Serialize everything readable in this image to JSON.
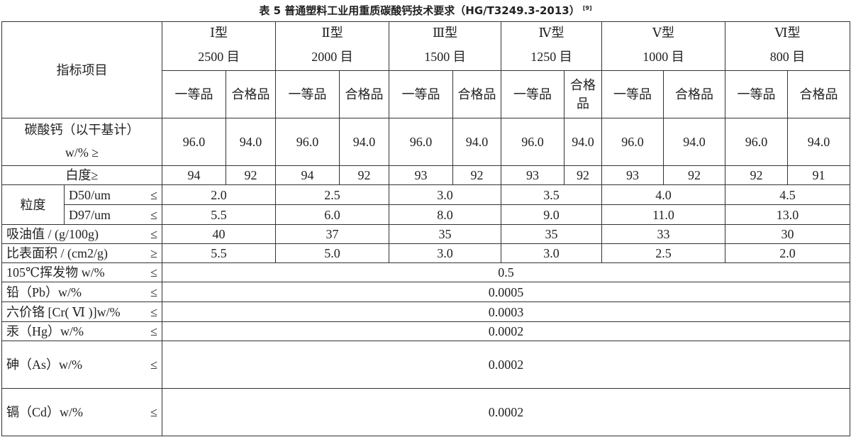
{
  "title": "表 5 普通塑料工业用重质碳酸钙技术要求（HG/T3249.3-2013）",
  "title_ref": "[9]",
  "table": {
    "item_header": "指标项目",
    "types": [
      {
        "name": "Ⅰ型",
        "mesh": "2500 目",
        "grades": [
          "一等品",
          "合格品"
        ]
      },
      {
        "name": "Ⅱ型",
        "mesh": "2000 目",
        "grades": [
          "一等品",
          "合格品"
        ]
      },
      {
        "name": "Ⅲ型",
        "mesh": "1500 目",
        "grades": [
          "一等品",
          "合格品"
        ]
      },
      {
        "name": "Ⅳ型",
        "mesh": "1250 目",
        "grades": [
          "一等品",
          "合格品"
        ]
      },
      {
        "name": "Ⅴ型",
        "mesh": "1000 目",
        "grades": [
          "一等品",
          "合格品"
        ]
      },
      {
        "name": "Ⅵ型",
        "mesh": "800 目",
        "grades": [
          "一等品",
          "合格品"
        ]
      }
    ],
    "calcium": {
      "label": "碳酸钙（以干基计）",
      "unit": "w/% ≥",
      "values": [
        "96.0",
        "94.0",
        "96.0",
        "94.0",
        "96.0",
        "94.0",
        "96.0",
        "94.0",
        "96.0",
        "94.0",
        "96.0",
        "94.0"
      ]
    },
    "whiteness": {
      "label": "白度≥",
      "values": [
        "94",
        "92",
        "94",
        "92",
        "93",
        "92",
        "93",
        "92",
        "93",
        "92",
        "92",
        "91"
      ]
    },
    "particle": {
      "label": "粒度",
      "rows": [
        {
          "label": "D50/um",
          "sign": "≤",
          "values": [
            "2.0",
            "2.5",
            "3.0",
            "3.5",
            "4.0",
            "4.5"
          ]
        },
        {
          "label": "D97/um",
          "sign": "≤",
          "values": [
            "5.5",
            "6.0",
            "8.0",
            "9.0",
            "11.0",
            "13.0"
          ]
        }
      ]
    },
    "type_rows": [
      {
        "label": "吸油值 / (g/100g)",
        "sign": "≤",
        "values": [
          "40",
          "37",
          "35",
          "35",
          "33",
          "30"
        ]
      },
      {
        "label": "比表面积 / (cm2/g)",
        "sign": "≥",
        "values": [
          "5.5",
          "5.0",
          "3.0",
          "3.0",
          "2.5",
          "2.0"
        ]
      }
    ],
    "common_rows": [
      {
        "label": "105℃挥发物 w/%",
        "sign": "≤",
        "value": "0.5"
      },
      {
        "label": "铅（Pb）w/%",
        "sign": "≤",
        "value": "0.0005"
      },
      {
        "label": "六价铬 [Cr( Ⅵ )]w/%",
        "sign": "≤",
        "value": "0.0003"
      },
      {
        "label": "汞（Hg）w/%",
        "sign": "≤",
        "value": "0.0002"
      },
      {
        "label": "砷（As）w/%",
        "sign": "≤",
        "value": "0.0002"
      },
      {
        "label": "镉（Cd）w/%",
        "sign": "≤",
        "value": "0.0002"
      }
    ]
  }
}
